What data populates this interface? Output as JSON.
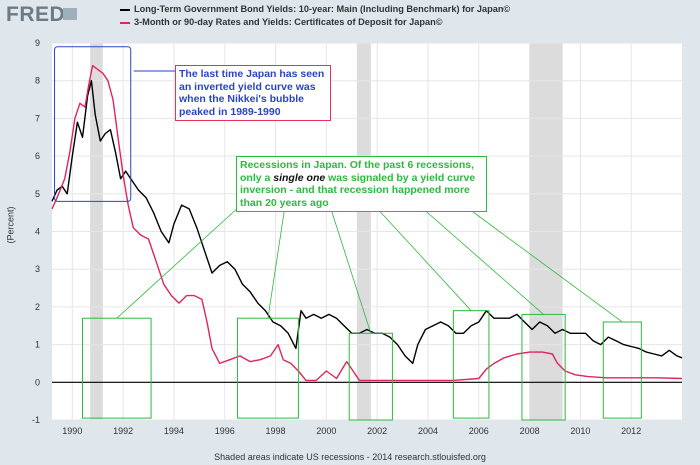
{
  "header": {
    "logo": "FRED",
    "logo_icon": "chart-trend-icon"
  },
  "chart_data": {
    "type": "line",
    "title": "",
    "ylabel": "(Percent)",
    "xlabel": "",
    "xlim": [
      1989.2,
      2014.0
    ],
    "ylim": [
      -1,
      9
    ],
    "xticks": [
      1990,
      1992,
      1994,
      1996,
      1998,
      2000,
      2002,
      2004,
      2006,
      2008,
      2010,
      2012
    ],
    "yticks": [
      -1,
      0,
      1,
      2,
      3,
      4,
      5,
      6,
      7,
      8,
      9
    ],
    "x_tick_labels": [
      "1990",
      "1992",
      "1994",
      "1996",
      "1998",
      "2000",
      "2002",
      "2004",
      "2006",
      "2008",
      "2010",
      "2012"
    ],
    "y_tick_labels": [
      "-1",
      "0",
      "1",
      "2",
      "3",
      "4",
      "5",
      "6",
      "7",
      "8",
      "9"
    ],
    "grid": true,
    "recessions": [
      [
        1990.7,
        1991.2
      ],
      [
        2001.2,
        2001.75
      ],
      [
        2008.0,
        2009.3
      ]
    ],
    "series": [
      {
        "name": "Long-Term Government Bond Yields: 10-year: Main (Including Benchmark) for Japan©",
        "color": "#000000",
        "x": [
          1989.2,
          1989.4,
          1989.6,
          1989.8,
          1990.0,
          1990.2,
          1990.4,
          1990.6,
          1990.75,
          1990.9,
          1991.1,
          1991.3,
          1991.5,
          1991.7,
          1991.9,
          1992.1,
          1992.3,
          1992.6,
          1992.9,
          1993.2,
          1993.5,
          1993.8,
          1994.0,
          1994.3,
          1994.6,
          1994.9,
          1995.2,
          1995.5,
          1995.8,
          1996.1,
          1996.4,
          1996.7,
          1997.0,
          1997.3,
          1997.6,
          1997.9,
          1998.2,
          1998.5,
          1998.8,
          1999.0,
          1999.2,
          1999.5,
          1999.8,
          2000.1,
          2000.4,
          2000.7,
          2001.0,
          2001.3,
          2001.6,
          2001.9,
          2002.2,
          2002.5,
          2002.8,
          2003.1,
          2003.4,
          2003.6,
          2003.9,
          2004.2,
          2004.5,
          2004.8,
          2005.1,
          2005.4,
          2005.7,
          2006.0,
          2006.3,
          2006.6,
          2006.9,
          2007.2,
          2007.5,
          2007.8,
          2008.1,
          2008.4,
          2008.7,
          2009.0,
          2009.3,
          2009.6,
          2009.9,
          2010.2,
          2010.5,
          2010.8,
          2011.1,
          2011.4,
          2011.7,
          2012.0,
          2012.3,
          2012.6,
          2012.9,
          2013.2,
          2013.5,
          2013.8,
          2014.0
        ],
        "values": [
          4.8,
          5.1,
          5.2,
          5.0,
          6.0,
          6.9,
          6.5,
          7.6,
          8.0,
          7.1,
          6.4,
          6.6,
          6.7,
          6.1,
          5.4,
          5.6,
          5.4,
          5.1,
          4.9,
          4.5,
          4.0,
          3.7,
          4.2,
          4.7,
          4.6,
          4.1,
          3.5,
          2.9,
          3.1,
          3.2,
          3.0,
          2.6,
          2.4,
          2.1,
          1.9,
          1.6,
          1.5,
          1.3,
          0.9,
          1.9,
          1.7,
          1.8,
          1.7,
          1.8,
          1.7,
          1.5,
          1.3,
          1.3,
          1.4,
          1.3,
          1.3,
          1.2,
          1.0,
          0.7,
          0.5,
          1.0,
          1.4,
          1.5,
          1.6,
          1.5,
          1.3,
          1.3,
          1.5,
          1.6,
          1.9,
          1.7,
          1.7,
          1.7,
          1.8,
          1.6,
          1.4,
          1.6,
          1.5,
          1.3,
          1.4,
          1.3,
          1.3,
          1.3,
          1.1,
          1.0,
          1.2,
          1.1,
          1.0,
          0.95,
          0.9,
          0.8,
          0.75,
          0.7,
          0.85,
          0.7,
          0.65
        ]
      },
      {
        "name": "3-Month or 90-day Rates and Yields: Certificates of Deposit for Japan©",
        "color": "#e0245e",
        "x": [
          1989.2,
          1989.4,
          1989.7,
          1989.9,
          1990.1,
          1990.3,
          1990.5,
          1990.65,
          1990.8,
          1991.0,
          1991.2,
          1991.4,
          1991.6,
          1991.8,
          1992.0,
          1992.2,
          1992.4,
          1992.7,
          1993.0,
          1993.3,
          1993.6,
          1993.9,
          1994.2,
          1994.5,
          1994.8,
          1995.1,
          1995.3,
          1995.5,
          1995.8,
          1996.2,
          1996.6,
          1997.0,
          1997.4,
          1997.8,
          1998.1,
          1998.3,
          1998.6,
          1998.9,
          1999.2,
          1999.6,
          2000.0,
          2000.4,
          2000.8,
          2001.0,
          2001.3,
          2001.6,
          2002.0,
          2003.0,
          2004.0,
          2005.0,
          2006.0,
          2006.3,
          2006.6,
          2007.0,
          2007.5,
          2008.0,
          2008.5,
          2008.9,
          2009.1,
          2009.4,
          2009.8,
          2010.3,
          2011.0,
          2012.0,
          2013.0,
          2014.0
        ],
        "values": [
          4.6,
          4.9,
          5.4,
          6.1,
          7.0,
          7.4,
          7.3,
          7.9,
          8.4,
          8.3,
          8.2,
          8.0,
          7.5,
          6.5,
          5.5,
          4.7,
          4.1,
          3.9,
          3.8,
          3.2,
          2.6,
          2.3,
          2.1,
          2.3,
          2.3,
          2.2,
          1.6,
          0.9,
          0.5,
          0.6,
          0.7,
          0.55,
          0.6,
          0.7,
          1.0,
          0.6,
          0.5,
          0.3,
          0.05,
          0.05,
          0.3,
          0.1,
          0.55,
          0.35,
          0.05,
          0.05,
          0.05,
          0.05,
          0.05,
          0.05,
          0.1,
          0.35,
          0.5,
          0.65,
          0.75,
          0.8,
          0.8,
          0.75,
          0.5,
          0.3,
          0.2,
          0.15,
          0.12,
          0.12,
          0.12,
          0.1
        ]
      }
    ],
    "annotations": {
      "blue_note": "The last time Japan has seen an inverted yield curve was when the Nikkei's bubble peaked in 1989-1990",
      "green_note_part1": "Recessions in Japan. Of the past 6 recessions, only a ",
      "green_note_emph": "single one",
      "green_note_part2": " was signaled by a yield curve inversion - and that recession happened more than 20 years ago",
      "blue_box_range": {
        "x": [
          1989.3,
          1992.3
        ],
        "y": [
          4.8,
          8.9
        ]
      },
      "green_boxes": [
        {
          "x": [
            1990.4,
            1993.1
          ],
          "y": [
            -0.95,
            1.7
          ]
        },
        {
          "x": [
            1996.5,
            1998.9
          ],
          "y": [
            -0.95,
            1.7
          ]
        },
        {
          "x": [
            2000.9,
            2002.6
          ],
          "y": [
            -1.0,
            1.3
          ]
        },
        {
          "x": [
            2005.0,
            2006.4
          ],
          "y": [
            -0.95,
            1.9
          ]
        },
        {
          "x": [
            2007.7,
            2009.4
          ],
          "y": [
            -1.0,
            1.8
          ]
        },
        {
          "x": [
            2010.9,
            2012.4
          ],
          "y": [
            -0.95,
            1.6
          ]
        }
      ]
    }
  },
  "footer": {
    "note": "Shaded areas indicate US recessions - 2014 research.stlouisfed.org"
  },
  "colors": {
    "background": "#dfe6ec",
    "plot": "#ffffff",
    "recession": "#dcdcdc",
    "blue": "#2a45c4",
    "green": "#2cba3e",
    "red": "#e0245e"
  }
}
